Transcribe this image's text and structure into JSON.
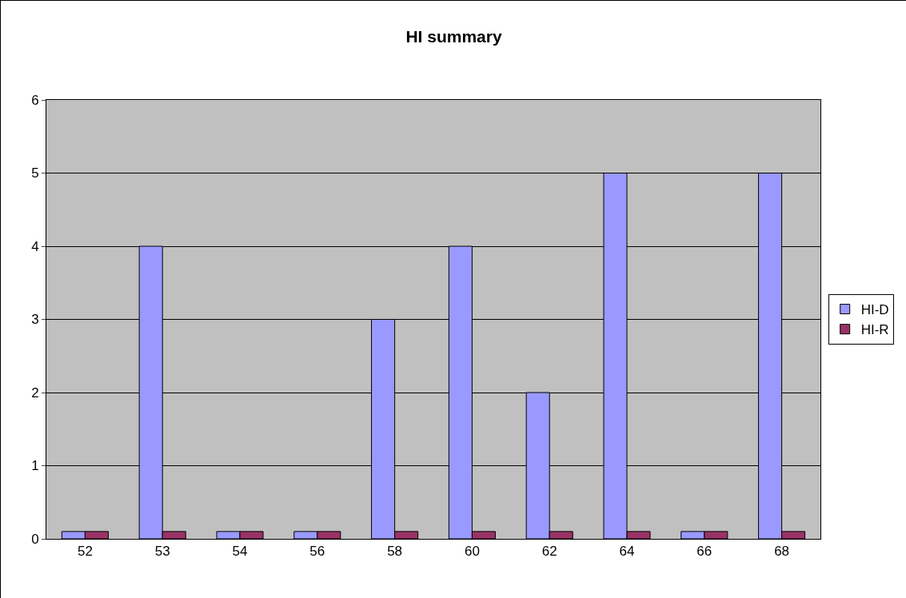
{
  "chart_data": {
    "type": "bar",
    "title": "HI summary",
    "categories": [
      "52",
      "53",
      "54",
      "56",
      "58",
      "60",
      "62",
      "64",
      "66",
      "68"
    ],
    "series": [
      {
        "name": "HI-D",
        "color": "#9999ff",
        "values": [
          0.1,
          4,
          0.1,
          0.1,
          3,
          4,
          2,
          5,
          0.1,
          5
        ]
      },
      {
        "name": "HI-R",
        "color": "#993366",
        "values": [
          0.1,
          0.1,
          0.1,
          0.1,
          0.1,
          0.1,
          0.1,
          0.1,
          0.1,
          0.1
        ]
      }
    ],
    "ylim": [
      0,
      6
    ],
    "yticks": [
      0,
      1,
      2,
      3,
      4,
      5,
      6
    ],
    "grid": "y",
    "legend": "right"
  }
}
